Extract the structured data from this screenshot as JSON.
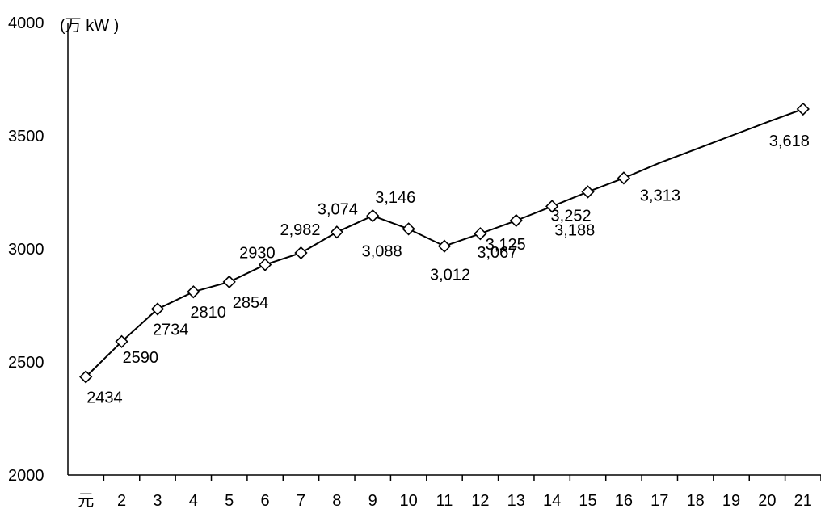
{
  "chart_data": {
    "type": "line",
    "unit_label": "(万 kW )",
    "x_categories": [
      "元",
      "2",
      "3",
      "4",
      "5",
      "6",
      "7",
      "8",
      "9",
      "10",
      "11",
      "12",
      "13",
      "14",
      "15",
      "16",
      "17",
      "18",
      "19",
      "20",
      "21"
    ],
    "ylim": [
      2000,
      4000
    ],
    "y_ticks": [
      2000,
      2500,
      3000,
      3500,
      4000
    ],
    "grid": false,
    "legend": "none",
    "line_color": "#000000",
    "marker": "diamond-open",
    "series": [
      {
        "points": [
          {
            "x": 0.5,
            "y": 2434,
            "label": "2434"
          },
          {
            "x": 1.5,
            "y": 2590,
            "label": "2590"
          },
          {
            "x": 2.5,
            "y": 2734,
            "label": "2734"
          },
          {
            "x": 3.5,
            "y": 2810,
            "label": "2810"
          },
          {
            "x": 4.5,
            "y": 2854,
            "label": "2854"
          },
          {
            "x": 5.5,
            "y": 2930,
            "label": "2930"
          },
          {
            "x": 6.5,
            "y": 2982,
            "label": "2,982"
          },
          {
            "x": 7.5,
            "y": 3074,
            "label": "3,074"
          },
          {
            "x": 8.5,
            "y": 3146,
            "label": "3,146"
          },
          {
            "x": 9.5,
            "y": 3088,
            "label": "3,088"
          },
          {
            "x": 10.5,
            "y": 3012,
            "label": "3,012"
          },
          {
            "x": 11.5,
            "y": 3067,
            "label": "3,067"
          },
          {
            "x": 12.5,
            "y": 3125,
            "label": "3,125"
          },
          {
            "x": 13.5,
            "y": 3188,
            "label": "3,188"
          },
          {
            "x": 14.5,
            "y": 3252,
            "label": "3,252"
          },
          {
            "x": 15.5,
            "y": 3313,
            "label": "3,313"
          },
          {
            "x": 20.5,
            "y": 3618,
            "label": "3,618"
          }
        ],
        "trend": [
          {
            "x": 16.5,
            "y": 3380
          },
          {
            "x": 17.5,
            "y": 3440
          },
          {
            "x": 18.5,
            "y": 3500
          },
          {
            "x": 19.5,
            "y": 3560
          }
        ]
      }
    ]
  }
}
